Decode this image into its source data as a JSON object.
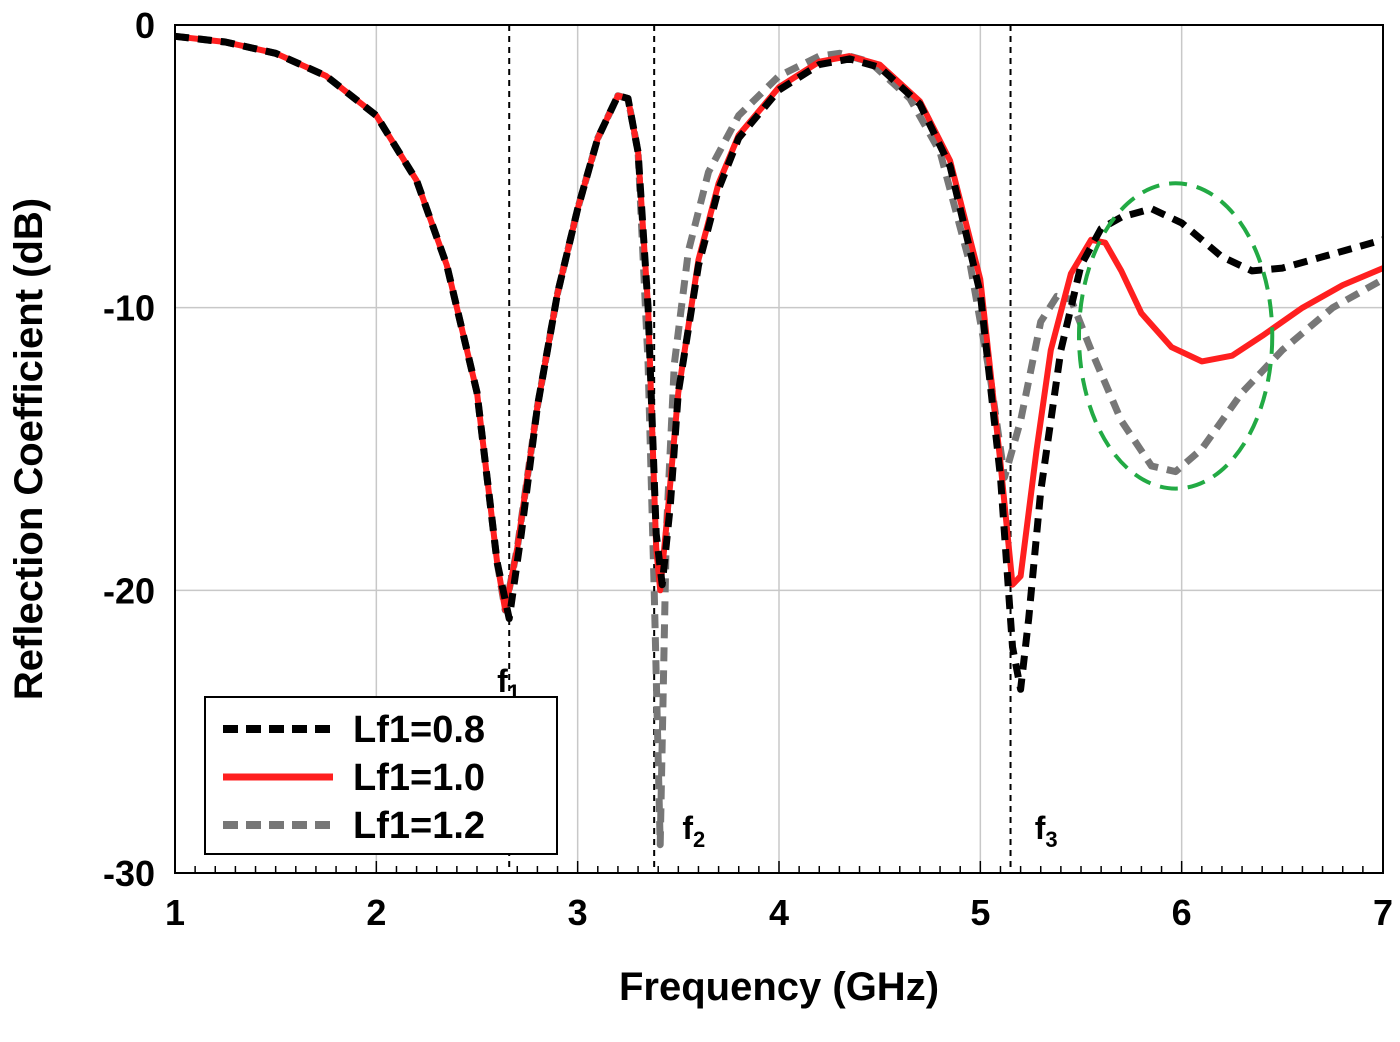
{
  "chart_data": {
    "type": "line",
    "title": "",
    "xlabel": "Frequency (GHz)",
    "ylabel": "Reflection Coefficient (dB)",
    "xlim": [
      1,
      7
    ],
    "ylim": [
      -30,
      0
    ],
    "xticks": [
      "1",
      "2",
      "3",
      "4",
      "5",
      "6",
      "7"
    ],
    "yticks": [
      "0",
      "-10",
      "-20",
      "-30"
    ],
    "grid": true,
    "legend_position": "bottom-left",
    "markers": [
      {
        "label": "f",
        "sub": "1",
        "x": 2.66
      },
      {
        "label": "f",
        "sub": "2",
        "x": 3.38
      },
      {
        "label": "f",
        "sub": "3",
        "x": 5.15
      }
    ],
    "highlight_ellipse": {
      "cx": 5.97,
      "cy": -11.0,
      "rx": 0.48,
      "ry": 5.4,
      "color": "#22aa44"
    },
    "series": [
      {
        "name": "Lf1=0.8",
        "color": "#000000",
        "dash": "dashed",
        "points": [
          [
            1.0,
            -0.4
          ],
          [
            1.25,
            -0.6
          ],
          [
            1.5,
            -1.0
          ],
          [
            1.75,
            -1.8
          ],
          [
            2.0,
            -3.2
          ],
          [
            2.2,
            -5.5
          ],
          [
            2.35,
            -8.5
          ],
          [
            2.5,
            -13.0
          ],
          [
            2.6,
            -19.0
          ],
          [
            2.66,
            -21.0
          ],
          [
            2.72,
            -18.0
          ],
          [
            2.8,
            -13.5
          ],
          [
            2.9,
            -9.5
          ],
          [
            3.0,
            -6.5
          ],
          [
            3.1,
            -4.0
          ],
          [
            3.2,
            -2.5
          ],
          [
            3.25,
            -2.6
          ],
          [
            3.3,
            -4.5
          ],
          [
            3.35,
            -10.0
          ],
          [
            3.39,
            -18.0
          ],
          [
            3.42,
            -19.8
          ],
          [
            3.46,
            -17.0
          ],
          [
            3.5,
            -13.0
          ],
          [
            3.6,
            -8.5
          ],
          [
            3.7,
            -5.8
          ],
          [
            3.8,
            -4.0
          ],
          [
            4.0,
            -2.3
          ],
          [
            4.2,
            -1.4
          ],
          [
            4.35,
            -1.2
          ],
          [
            4.5,
            -1.5
          ],
          [
            4.7,
            -2.8
          ],
          [
            4.85,
            -5.0
          ],
          [
            5.0,
            -9.5
          ],
          [
            5.1,
            -16.0
          ],
          [
            5.16,
            -22.0
          ],
          [
            5.2,
            -23.5
          ],
          [
            5.24,
            -21.0
          ],
          [
            5.3,
            -16.5
          ],
          [
            5.4,
            -11.5
          ],
          [
            5.5,
            -8.5
          ],
          [
            5.6,
            -7.2
          ],
          [
            5.7,
            -6.8
          ],
          [
            5.85,
            -6.5
          ],
          [
            6.0,
            -7.0
          ],
          [
            6.2,
            -8.2
          ],
          [
            6.35,
            -8.7
          ],
          [
            6.5,
            -8.6
          ],
          [
            6.7,
            -8.2
          ],
          [
            7.0,
            -7.6
          ]
        ]
      },
      {
        "name": "Lf1=1.0",
        "color": "#ff1f1f",
        "dash": "solid",
        "points": [
          [
            1.0,
            -0.4
          ],
          [
            1.25,
            -0.6
          ],
          [
            1.5,
            -1.0
          ],
          [
            1.75,
            -1.8
          ],
          [
            2.0,
            -3.2
          ],
          [
            2.2,
            -5.5
          ],
          [
            2.35,
            -8.5
          ],
          [
            2.5,
            -13.0
          ],
          [
            2.6,
            -19.0
          ],
          [
            2.64,
            -20.7
          ],
          [
            2.7,
            -18.5
          ],
          [
            2.8,
            -13.5
          ],
          [
            2.9,
            -9.5
          ],
          [
            3.0,
            -6.5
          ],
          [
            3.1,
            -4.0
          ],
          [
            3.2,
            -2.5
          ],
          [
            3.25,
            -2.6
          ],
          [
            3.3,
            -4.5
          ],
          [
            3.35,
            -10.0
          ],
          [
            3.39,
            -18.5
          ],
          [
            3.41,
            -20.0
          ],
          [
            3.45,
            -17.0
          ],
          [
            3.5,
            -13.0
          ],
          [
            3.6,
            -8.3
          ],
          [
            3.7,
            -5.6
          ],
          [
            3.8,
            -3.9
          ],
          [
            4.0,
            -2.2
          ],
          [
            4.2,
            -1.3
          ],
          [
            4.35,
            -1.1
          ],
          [
            4.5,
            -1.4
          ],
          [
            4.7,
            -2.7
          ],
          [
            4.85,
            -4.8
          ],
          [
            5.0,
            -9.0
          ],
          [
            5.1,
            -15.5
          ],
          [
            5.16,
            -19.8
          ],
          [
            5.2,
            -19.5
          ],
          [
            5.28,
            -15.0
          ],
          [
            5.35,
            -11.5
          ],
          [
            5.45,
            -8.8
          ],
          [
            5.55,
            -7.6
          ],
          [
            5.62,
            -7.7
          ],
          [
            5.7,
            -8.7
          ],
          [
            5.8,
            -10.2
          ],
          [
            5.95,
            -11.4
          ],
          [
            6.1,
            -11.9
          ],
          [
            6.25,
            -11.7
          ],
          [
            6.4,
            -11.0
          ],
          [
            6.6,
            -10.0
          ],
          [
            6.8,
            -9.2
          ],
          [
            7.0,
            -8.6
          ]
        ]
      },
      {
        "name": "Lf1=1.2",
        "color": "#777777",
        "dash": "dashed",
        "points": [
          [
            1.0,
            -0.4
          ],
          [
            1.25,
            -0.6
          ],
          [
            1.5,
            -1.0
          ],
          [
            1.75,
            -1.8
          ],
          [
            2.0,
            -3.2
          ],
          [
            2.2,
            -5.5
          ],
          [
            2.35,
            -8.5
          ],
          [
            2.5,
            -13.0
          ],
          [
            2.6,
            -19.0
          ],
          [
            2.64,
            -20.7
          ],
          [
            2.7,
            -18.5
          ],
          [
            2.8,
            -13.5
          ],
          [
            2.9,
            -9.5
          ],
          [
            3.0,
            -6.5
          ],
          [
            3.1,
            -4.0
          ],
          [
            3.2,
            -2.5
          ],
          [
            3.25,
            -2.6
          ],
          [
            3.3,
            -4.5
          ],
          [
            3.35,
            -12.0
          ],
          [
            3.38,
            -20.0
          ],
          [
            3.41,
            -29.0
          ],
          [
            3.44,
            -18.0
          ],
          [
            3.48,
            -12.0
          ],
          [
            3.55,
            -8.0
          ],
          [
            3.65,
            -5.2
          ],
          [
            3.8,
            -3.2
          ],
          [
            4.0,
            -1.8
          ],
          [
            4.2,
            -1.1
          ],
          [
            4.3,
            -1.0
          ],
          [
            4.45,
            -1.3
          ],
          [
            4.65,
            -2.6
          ],
          [
            4.8,
            -4.5
          ],
          [
            4.95,
            -8.5
          ],
          [
            5.05,
            -12.5
          ],
          [
            5.12,
            -16.0
          ],
          [
            5.2,
            -14.0
          ],
          [
            5.3,
            -10.5
          ],
          [
            5.38,
            -9.6
          ],
          [
            5.45,
            -9.7
          ],
          [
            5.55,
            -11.5
          ],
          [
            5.7,
            -14.0
          ],
          [
            5.85,
            -15.6
          ],
          [
            5.97,
            -15.8
          ],
          [
            6.1,
            -15.0
          ],
          [
            6.3,
            -13.0
          ],
          [
            6.5,
            -11.5
          ],
          [
            6.75,
            -10.0
          ],
          [
            7.0,
            -9.0
          ]
        ]
      }
    ]
  }
}
